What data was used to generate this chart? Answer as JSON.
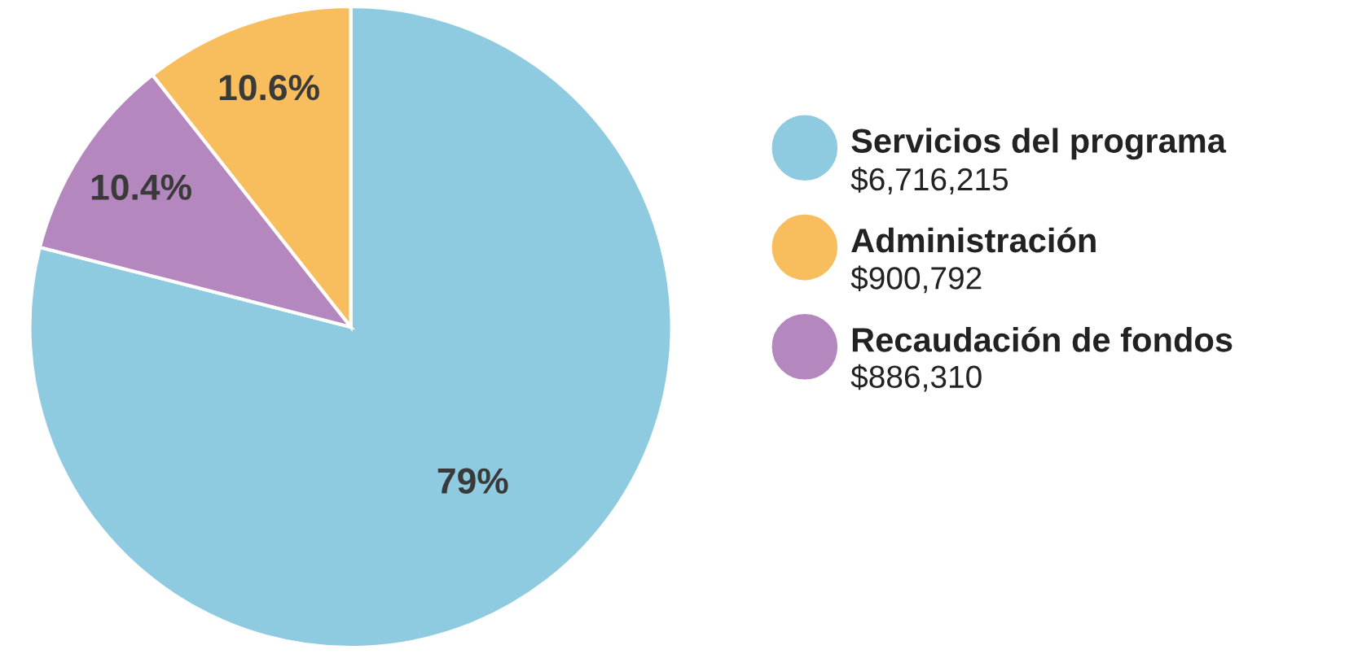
{
  "chart_data": {
    "type": "pie",
    "categories": [
      "Servicios del programa",
      "Administración",
      "Recaudación de fondos"
    ],
    "values": [
      79,
      10.6,
      10.4
    ],
    "colors": [
      "#8ecbe0",
      "#f8bd5c",
      "#b487bf"
    ],
    "value_labels": [
      "79%",
      "10.6%",
      "10.4%"
    ],
    "annotations": [
      "$6,716,215",
      "$900,792",
      "$886,310"
    ],
    "legend": "right"
  }
}
